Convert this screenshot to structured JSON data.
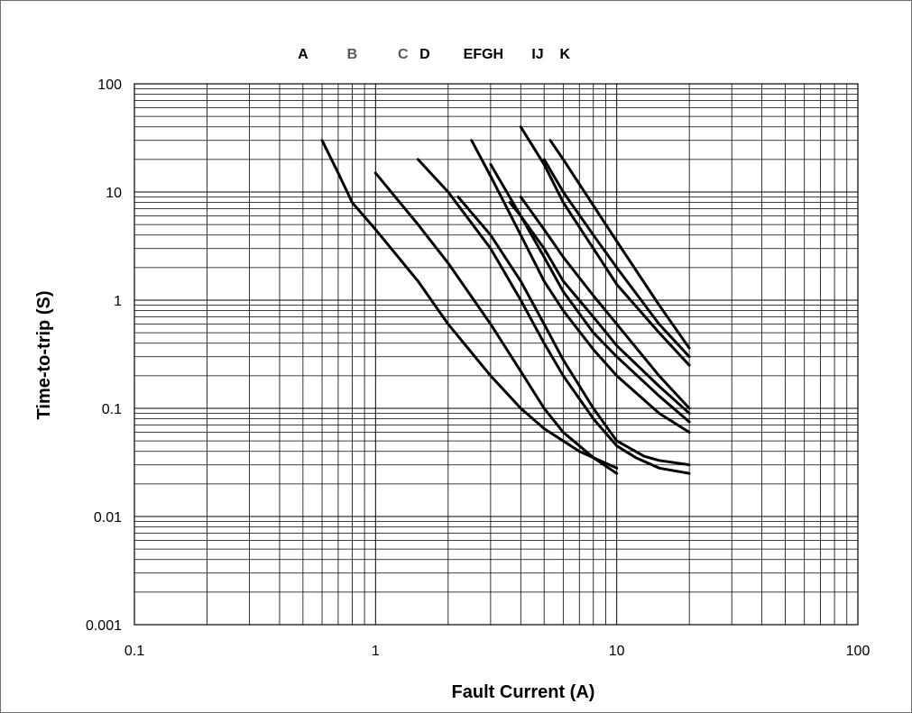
{
  "chart_data": {
    "type": "line",
    "xlabel": "Fault Current (A)",
    "ylabel": "Time-to-trip (S)",
    "xscale": "log",
    "yscale": "log",
    "xlim": [
      0.1,
      100
    ],
    "ylim": [
      0.001,
      100
    ],
    "grid": true,
    "x_ticks": [
      {
        "value": 0.1,
        "label": "0.1"
      },
      {
        "value": 1,
        "label": "1"
      },
      {
        "value": 10,
        "label": "10"
      },
      {
        "value": 100,
        "label": "100"
      }
    ],
    "y_ticks": [
      {
        "value": 100,
        "label": "100"
      },
      {
        "value": 10,
        "label": "10"
      },
      {
        "value": 1,
        "label": "1"
      },
      {
        "value": 0.1,
        "label": "0.1"
      },
      {
        "value": 0.01,
        "label": "0.01"
      },
      {
        "value": 0.001,
        "label": "0.001"
      }
    ],
    "curve_labels": [
      {
        "text": "A",
        "x": 0.5,
        "color": "#000000"
      },
      {
        "text": "B",
        "x": 0.8,
        "color": "#595959"
      },
      {
        "text": "C",
        "x": 1.3,
        "color": "#595959"
      },
      {
        "text": "D",
        "x": 1.6,
        "color": "#000000"
      },
      {
        "text": "EFGH",
        "x": 2.8,
        "color": "#000000"
      },
      {
        "text": "IJ",
        "x": 4.7,
        "color": "#000000"
      },
      {
        "text": "K",
        "x": 6.1,
        "color": "#000000"
      }
    ],
    "series": [
      {
        "x": [
          0.6,
          0.7,
          0.8,
          1.0,
          1.5,
          2.0,
          3.0,
          4.0,
          5.0,
          7.0,
          10.0
        ],
        "y": [
          30,
          15,
          8,
          4.5,
          1.5,
          0.6,
          0.2,
          0.1,
          0.065,
          0.04,
          0.028
        ]
      },
      {
        "x": [
          1.0,
          1.5,
          2.0,
          3.0,
          4.0,
          5.0,
          6.0,
          8.0,
          10.0
        ],
        "y": [
          15,
          5,
          2.2,
          0.6,
          0.22,
          0.1,
          0.06,
          0.035,
          0.025
        ]
      },
      {
        "x": [
          1.5,
          2.0,
          3.0,
          4.0,
          5.0,
          6.0,
          8.0,
          10.0,
          12.0,
          15.0,
          20.0
        ],
        "y": [
          20,
          10,
          3,
          1,
          0.4,
          0.2,
          0.08,
          0.045,
          0.035,
          0.028,
          0.025
        ]
      },
      {
        "x": [
          2.2,
          3.0,
          4.0,
          5.0,
          6.0,
          8.0,
          10.0,
          13.0,
          15.0,
          20.0
        ],
        "y": [
          9,
          4,
          1.5,
          0.6,
          0.28,
          0.1,
          0.05,
          0.036,
          0.033,
          0.03
        ]
      },
      {
        "x": [
          2.5,
          3.0,
          4.0,
          5.0,
          6.0,
          8.0,
          10.0,
          15.0,
          20.0
        ],
        "y": [
          30,
          14,
          4,
          1.5,
          0.8,
          0.35,
          0.2,
          0.09,
          0.06
        ]
      },
      {
        "x": [
          3.0,
          4.0,
          5.0,
          6.0,
          8.0,
          10.0,
          15.0,
          20.0
        ],
        "y": [
          18,
          6,
          2.5,
          1.2,
          0.5,
          0.3,
          0.13,
          0.075
        ]
      },
      {
        "x": [
          3.6,
          4.0,
          5.0,
          6.0,
          8.0,
          10.0,
          15.0,
          20.0
        ],
        "y": [
          8,
          6,
          3,
          1.5,
          0.7,
          0.38,
          0.16,
          0.09
        ]
      },
      {
        "x": [
          4.0,
          5.0,
          6.0,
          8.0,
          10.0,
          15.0,
          20.0
        ],
        "y": [
          9,
          4.5,
          2.5,
          1.1,
          0.6,
          0.2,
          0.1
        ]
      },
      {
        "x": [
          4.0,
          5.0,
          6.0,
          8.0,
          10.0,
          15.0,
          20.0
        ],
        "y": [
          40,
          18,
          8,
          3,
          1.4,
          0.5,
          0.25
        ]
      },
      {
        "x": [
          5.0,
          6.0,
          8.0,
          10.0,
          15.0,
          20.0
        ],
        "y": [
          20,
          10,
          4,
          2,
          0.6,
          0.3
        ]
      },
      {
        "x": [
          5.3,
          6.0,
          8.0,
          10.0,
          15.0,
          20.0
        ],
        "y": [
          30,
          20,
          7.5,
          3.5,
          0.9,
          0.36
        ]
      }
    ]
  }
}
